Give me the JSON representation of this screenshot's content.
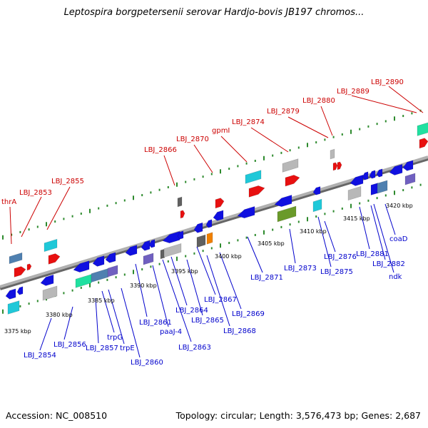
{
  "title": "Leptospira borgpetersenii serovar Hardjo-bovis JB197 chromos...",
  "footer": {
    "accession": "Accession: NC_008510",
    "stats": "Topology: circular; Length: 3,576,473 bp; Genes: 2,687"
  },
  "colors": {
    "forward_label": "#cc0000",
    "reverse_label": "#0000cc",
    "backbone": "#808080",
    "tick": "#2d8a2d",
    "gene_blue": "#1010e0",
    "gene_red": "#e81010",
    "gene_cyan": "#20c8d8",
    "gene_grey": "#b8b8b8",
    "gene_steel": "#4f80b0",
    "gene_teal": "#20e0a0",
    "gene_olive": "#6a9a2a",
    "gene_purple": "#7060c0",
    "gene_dark": "#606060",
    "gene_orange": "#f08000"
  },
  "kbp_ticks": [
    "3375 kbp",
    "3380 kbp",
    "3385 kbp",
    "3390 kbp",
    "3395 kbp",
    "3400 kbp",
    "3405 kbp",
    "3410 kbp",
    "3415 kbp",
    "3420 kbp"
  ],
  "forward_labels": [
    "thrA",
    "LBJ_2853",
    "LBJ_2855",
    "LBJ_2866",
    "LBJ_2870",
    "gpmI",
    "LBJ_2874",
    "LBJ_2879",
    "LBJ_2880",
    "LBJ_2889",
    "LBJ_2890"
  ],
  "reverse_labels": [
    "LBJ_2854",
    "LBJ_2856",
    "LBJ_2857",
    "trpG",
    "trpE",
    "LBJ_2860",
    "LBJ_2861",
    "paaJ-4",
    "LBJ_2863",
    "LBJ_2864",
    "LBJ_2865",
    "LBJ_2867",
    "LBJ_2868",
    "LBJ_2869",
    "LBJ_2871",
    "LBJ_2873",
    "LBJ_2875",
    "LBJ_2876",
    "LBJ_2881",
    "LBJ_2882",
    "ndk",
    "coaD"
  ]
}
